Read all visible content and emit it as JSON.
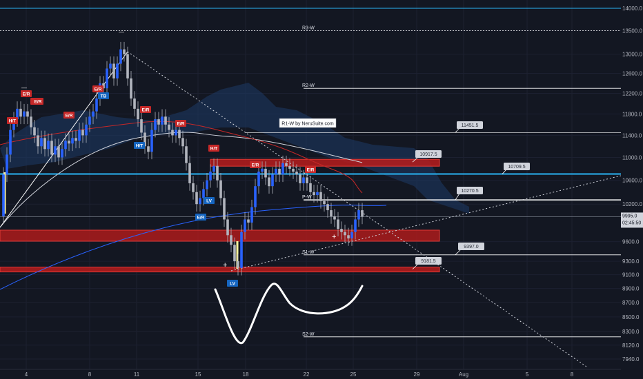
{
  "chart_data": {
    "type": "candlestick",
    "colors": {
      "background": "#131722",
      "up": "#2962ff",
      "down": "#b2b5be",
      "wick": "#b2b5be",
      "zone": "#b71c1c",
      "pivot": "#ffffff",
      "ema_blue": "#2962ff",
      "ema_red": "#c62828",
      "ema_white": "#d1d4dc",
      "cloud": "#1e3a66",
      "support_blue": "#29b6f6",
      "trend_dotted": "#d1d4dc"
    },
    "y_axis": {
      "scale": "log",
      "ticks": [
        "14000.0",
        "13500.0",
        "13000.0",
        "12600.0",
        "12200.0",
        "11800.0",
        "11400.0",
        "11000.0",
        "10600.0",
        "10200.0",
        "9600.0",
        "9300.0",
        "9100.0",
        "8900.0",
        "8700.0",
        "8500.0",
        "8300.0",
        "8120.0",
        "7940.0"
      ]
    },
    "x_axis": {
      "ticks": [
        "4",
        "8",
        "11",
        "15",
        "18",
        "22",
        "25",
        "29",
        "Aug",
        "5",
        "8"
      ]
    },
    "last_price": "9995.0",
    "countdown": "02:45:50",
    "pivots": [
      {
        "label": "R3-W",
        "value": 13500
      },
      {
        "label": "R2-W",
        "value": 12300
      },
      {
        "label": "P-W",
        "value": 10270
      },
      {
        "label": "S1-W",
        "value": 9397
      },
      {
        "label": "S2-W",
        "value": 8230
      }
    ],
    "callouts": [
      "11451.5",
      "10917.5",
      "10709.5",
      "10270.5",
      "9397.0",
      "9181.5"
    ],
    "indicator_label": "R1-W by NeruSuite.com",
    "signal_tags": [
      "E/R",
      "E/R",
      "H/T",
      "E/R",
      "E/R",
      "E/R",
      "E/R",
      "H/T",
      "E/R",
      "H/T",
      "E/R",
      "E/R",
      "TB",
      "LV",
      "E/R",
      "LV"
    ]
  }
}
